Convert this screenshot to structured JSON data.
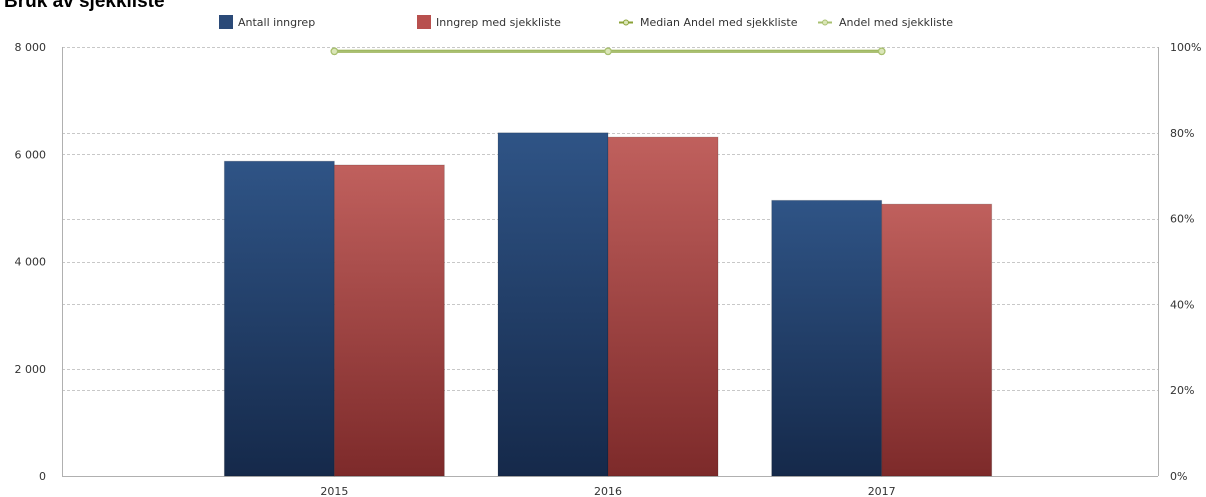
{
  "page": {
    "title": "Bruk av sjekkliste"
  },
  "chart_data": {
    "type": "bar",
    "title": "Bruk av sjekkliste",
    "categories": [
      "2015",
      "2016",
      "2017"
    ],
    "series": [
      {
        "name": "Antall inngrep",
        "kind": "bar",
        "axis": "left",
        "color": "#2b4a78",
        "values": [
          5870,
          6400,
          5140
        ]
      },
      {
        "name": "Inngrep med sjekkliste",
        "kind": "bar",
        "axis": "left",
        "color": "#b8504e",
        "values": [
          5800,
          6320,
          5070
        ]
      },
      {
        "name": "Median Andel med sjekkliste",
        "kind": "line",
        "axis": "right",
        "color": "#8aa236",
        "values": [
          99,
          99,
          99
        ]
      },
      {
        "name": "Andel med sjekkliste",
        "kind": "line",
        "axis": "right",
        "color": "#a8c070",
        "values": [
          99,
          99,
          99
        ]
      }
    ],
    "left_axis": {
      "ylim": [
        0,
        8000
      ],
      "ticks": [
        "0",
        "2 000",
        "4 000",
        "6 000",
        "8 000"
      ]
    },
    "right_axis": {
      "ylim": [
        0,
        100
      ],
      "ticks": [
        "0%",
        "20%",
        "40%",
        "60%",
        "80%",
        "100%"
      ]
    },
    "grid": true,
    "legend_position": "top"
  }
}
